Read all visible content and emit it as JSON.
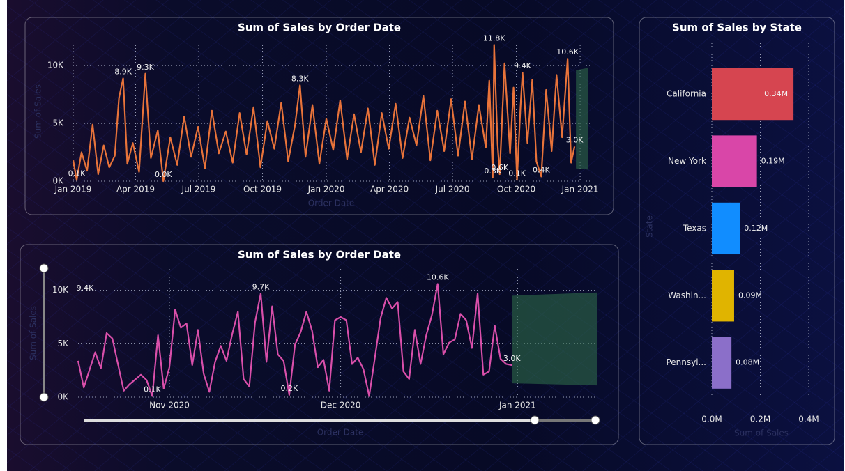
{
  "chart_data": [
    {
      "type": "line",
      "title": "Sum of Sales by Order Date",
      "x_label": "Order Date",
      "y_label": "Sum of Sales",
      "xlim": [
        0,
        745
      ],
      "xticks": [
        {
          "value": 0,
          "label": "Jan 2019"
        },
        {
          "value": 90,
          "label": "Apr 2019"
        },
        {
          "value": 181,
          "label": "Jul 2019"
        },
        {
          "value": 273,
          "label": "Oct 2019"
        },
        {
          "value": 365,
          "label": "Jan 2020"
        },
        {
          "value": 456,
          "label": "Apr 2020"
        },
        {
          "value": 547,
          "label": "Jul 2020"
        },
        {
          "value": 639,
          "label": "Oct 2020"
        },
        {
          "value": 731,
          "label": "Jan 2021"
        }
      ],
      "ylim": [
        0,
        12000
      ],
      "yticks": [
        {
          "value": 0,
          "label": "0K"
        },
        {
          "value": 5000,
          "label": "5K"
        },
        {
          "value": 10000,
          "label": "10K"
        }
      ],
      "grid": true,
      "color": "#e8733a",
      "x": [
        0,
        5,
        12,
        20,
        28,
        36,
        44,
        52,
        60,
        66,
        72,
        78,
        86,
        95,
        104,
        112,
        122,
        130,
        140,
        150,
        160,
        170,
        180,
        190,
        200,
        210,
        220,
        230,
        240,
        250,
        260,
        270,
        280,
        290,
        300,
        310,
        320,
        327,
        335,
        345,
        355,
        365,
        375,
        385,
        395,
        405,
        415,
        425,
        435,
        445,
        455,
        465,
        475,
        485,
        495,
        505,
        515,
        525,
        535,
        545,
        555,
        565,
        575,
        585,
        595,
        600,
        605,
        607,
        612,
        615,
        622,
        630,
        635,
        640,
        645,
        648,
        655,
        662,
        668,
        675,
        682,
        690,
        697,
        705,
        713,
        718,
        723
      ],
      "values": [
        1800,
        100,
        2500,
        900,
        4900,
        600,
        3100,
        1200,
        2200,
        7200,
        8900,
        1500,
        3300,
        800,
        9300,
        2000,
        4400,
        0,
        3800,
        1400,
        5600,
        2100,
        4700,
        1100,
        6100,
        2400,
        4300,
        1600,
        5900,
        2300,
        6400,
        1200,
        5200,
        2800,
        6800,
        1700,
        4900,
        8300,
        2100,
        6600,
        1500,
        5400,
        2700,
        7000,
        1900,
        5800,
        2500,
        6300,
        1400,
        5900,
        2800,
        6700,
        2000,
        5500,
        3100,
        7400,
        1800,
        6100,
        2600,
        7100,
        2200,
        6900,
        1900,
        6600,
        2900,
        8700,
        300,
        11800,
        3200,
        600,
        10200,
        2400,
        8100,
        100,
        6400,
        9400,
        3300,
        8800,
        1700,
        400,
        7900,
        2600,
        9200,
        3800,
        10600,
        1600,
        3000
      ],
      "value_labels": [
        null,
        "0.1K",
        null,
        null,
        null,
        null,
        null,
        null,
        null,
        null,
        "8.9K",
        null,
        null,
        null,
        "9.3K",
        null,
        null,
        "0.0K",
        null,
        null,
        null,
        null,
        null,
        null,
        null,
        null,
        null,
        null,
        null,
        null,
        null,
        null,
        null,
        null,
        null,
        null,
        null,
        "8.3K",
        null,
        null,
        null,
        null,
        null,
        null,
        null,
        null,
        null,
        null,
        null,
        null,
        null,
        null,
        null,
        null,
        null,
        null,
        null,
        null,
        null,
        null,
        null,
        null,
        null,
        null,
        null,
        null,
        "0.3K",
        "11.8K",
        null,
        "0.6K",
        null,
        null,
        null,
        "0.1K",
        null,
        "9.4K",
        null,
        null,
        null,
        "0.4K",
        null,
        null,
        null,
        null,
        "10.6K",
        null,
        "3.0K"
      ],
      "forecast": {
        "x": [
          725,
          742
        ],
        "upper": [
          9600,
          9800
        ],
        "lower": [
          1100,
          1000
        ],
        "color": "#2e6b4a"
      }
    },
    {
      "type": "line",
      "title": "Sum of Sales by Order Date",
      "x_label": "Order Date",
      "y_label": "Sum of Sales",
      "xlim": [
        654,
        745
      ],
      "xticks": [
        {
          "value": 670,
          "label": "Nov 2020"
        },
        {
          "value": 700,
          "label": "Dec 2020"
        },
        {
          "value": 731,
          "label": "Jan 2021"
        }
      ],
      "ylim": [
        0,
        12000
      ],
      "yticks": [
        {
          "value": 0,
          "label": "0K"
        },
        {
          "value": 5000,
          "label": "5K"
        },
        {
          "value": 10000,
          "label": "10K"
        }
      ],
      "grid": true,
      "color": "#d94faa",
      "x": [
        654,
        655,
        657,
        658,
        659,
        660,
        662,
        663,
        665,
        666,
        667,
        668,
        669,
        670,
        671,
        672,
        673,
        674,
        675,
        676,
        677,
        678,
        679,
        680,
        681,
        682,
        683,
        684,
        685,
        686,
        687,
        688,
        689,
        690,
        691,
        692,
        693,
        694,
        695,
        696,
        697,
        698,
        699,
        700,
        701,
        702,
        703,
        704,
        705,
        706,
        707,
        708,
        709,
        710,
        711,
        712,
        713,
        714,
        715,
        716,
        717,
        718,
        719,
        720,
        721,
        722,
        723,
        724,
        725,
        726,
        727,
        728,
        729,
        730
      ],
      "values": [
        3400,
        900,
        4200,
        2700,
        6000,
        5500,
        600,
        1200,
        2100,
        1600,
        100,
        5800,
        800,
        2800,
        8200,
        6500,
        6900,
        3000,
        6300,
        2200,
        500,
        3300,
        4800,
        3400,
        5900,
        8000,
        1700,
        1000,
        7000,
        9700,
        3300,
        8500,
        4000,
        3400,
        200,
        4900,
        6100,
        8000,
        6200,
        2800,
        3500,
        600,
        7200,
        7500,
        7200,
        3100,
        3700,
        2600,
        100,
        3700,
        7400,
        9300,
        8300,
        8900,
        2400,
        1700,
        6300,
        3100,
        5800,
        7700,
        10600,
        4000,
        5100,
        5400,
        7800,
        7200,
        4600,
        9700,
        2100,
        2400,
        6700,
        3600,
        3100,
        3000
      ],
      "value_labels": [
        null,
        null,
        null,
        null,
        null,
        null,
        null,
        null,
        null,
        null,
        "0.1K",
        null,
        null,
        null,
        null,
        null,
        null,
        null,
        null,
        null,
        null,
        null,
        null,
        null,
        null,
        null,
        null,
        null,
        null,
        "9.7K",
        null,
        null,
        null,
        null,
        "0.2K",
        null,
        null,
        null,
        null,
        null,
        null,
        null,
        null,
        null,
        null,
        null,
        null,
        null,
        null,
        null,
        null,
        null,
        null,
        null,
        null,
        null,
        null,
        null,
        null,
        null,
        "10.6K",
        null,
        null,
        null,
        null,
        null,
        null,
        null,
        null,
        null,
        null,
        null,
        null,
        "3.0K"
      ],
      "annotations": [
        "9.4K"
      ],
      "forecast": {
        "x": [
          730,
          745
        ],
        "upper": [
          9500,
          9800
        ],
        "lower": [
          1300,
          1100
        ],
        "color": "#2e6b4a"
      }
    },
    {
      "type": "hbar",
      "title": "Sum of Sales by State",
      "x_label": "Sum of Sales",
      "y_label": "State",
      "categories": [
        "California",
        "New York",
        "Texas",
        "Washin...",
        "Pennsyl..."
      ],
      "values": [
        337000,
        186000,
        116000,
        92000,
        81000
      ],
      "value_labels": [
        "0.34M",
        "0.19M",
        "0.12M",
        "0.09M",
        "0.08M"
      ],
      "colors": [
        "#d64550",
        "#d946a8",
        "#118dff",
        "#e0b400",
        "#8b6fc9"
      ],
      "xlim": [
        0,
        400000
      ],
      "xticks": [
        {
          "value": 0,
          "label": "0.0M"
        },
        {
          "value": 200000,
          "label": "0.2M"
        },
        {
          "value": 400000,
          "label": "0.4M"
        }
      ],
      "grid": true
    }
  ]
}
